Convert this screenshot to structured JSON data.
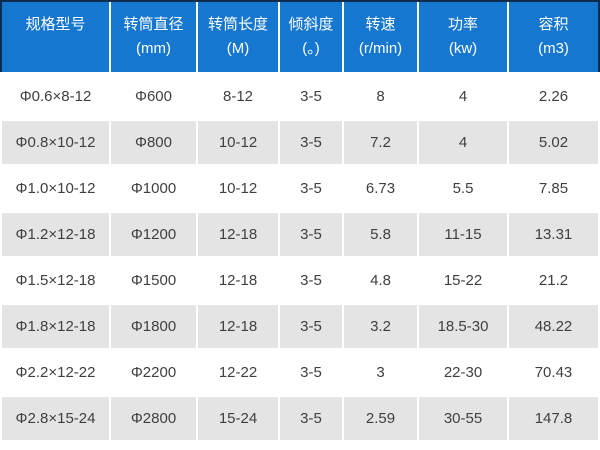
{
  "colors": {
    "header_bg": "#1577d0",
    "header_text": "#ffffff",
    "header_outline": "#0c2d50",
    "row_bg": "#ffffff",
    "row_alt_bg": "#e4e4e4",
    "cell_text": "#3f3f3f",
    "gridline": "#ffffff"
  },
  "chart_data": {
    "type": "table",
    "title": "",
    "columns": [
      {
        "name": "规格型号",
        "unit": ""
      },
      {
        "name": "转筒直径",
        "unit": "(mm)"
      },
      {
        "name": "转筒长度",
        "unit": "(M)"
      },
      {
        "name": "倾斜度",
        "unit": "(。)"
      },
      {
        "name": "转速",
        "unit": "(r/min)"
      },
      {
        "name": "功率",
        "unit": "(kw)"
      },
      {
        "name": "容积",
        "unit": "(m3)"
      }
    ],
    "rows": [
      [
        "Φ0.6×8-12",
        "Φ600",
        "8-12",
        "3-5",
        "8",
        "4",
        "2.26"
      ],
      [
        "Φ0.8×10-12",
        "Φ800",
        "10-12",
        "3-5",
        "7.2",
        "4",
        "5.02"
      ],
      [
        "Φ1.0×10-12",
        "Φ1000",
        "10-12",
        "3-5",
        "6.73",
        "5.5",
        "7.85"
      ],
      [
        "Φ1.2×12-18",
        "Φ1200",
        "12-18",
        "3-5",
        "5.8",
        "11-15",
        "13.31"
      ],
      [
        "Φ1.5×12-18",
        "Φ1500",
        "12-18",
        "3-5",
        "4.8",
        "15-22",
        "21.2"
      ],
      [
        "Φ1.8×12-18",
        "Φ1800",
        "12-18",
        "3-5",
        "3.2",
        "18.5-30",
        "48.22"
      ],
      [
        "Φ2.2×12-22",
        "Φ2200",
        "12-22",
        "3-5",
        "3",
        "22-30",
        "70.43"
      ],
      [
        "Φ2.8×15-24",
        "Φ2800",
        "15-24",
        "3-5",
        "2.59",
        "30-55",
        "147.8"
      ]
    ]
  }
}
